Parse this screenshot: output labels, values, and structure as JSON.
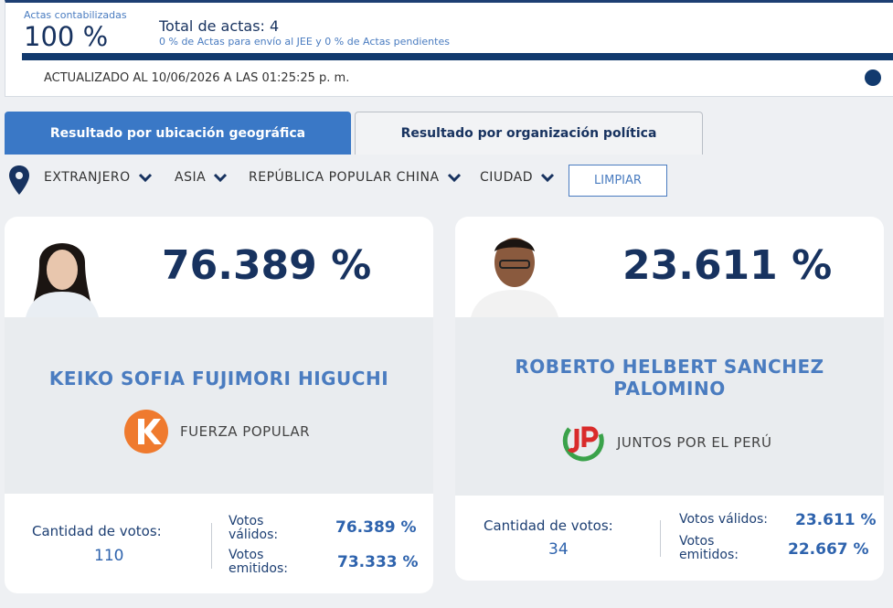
{
  "header": {
    "actas_label": "Actas contabilizadas",
    "actas_percent": "100 %",
    "total_actas": "Total de actas: 4",
    "actas_note": "0 % de Actas para envío al JEE y 0 % de Actas pendientes",
    "updated": "ACTUALIZADO AL 10/06/2026 A LAS 01:25:25 p. m."
  },
  "tabs": [
    "Resultado por ubicación geográfica",
    "Resultado por organización política"
  ],
  "filters": [
    "EXTRANJERO",
    "ASIA",
    "REPÚBLICA POPULAR CHINA",
    "CIUDAD"
  ],
  "clear_button": "LIMPIAR",
  "candidates": [
    {
      "percent": "76.389 %",
      "name": "KEIKO SOFIA FUJIMORI HIGUCHI",
      "party": "FUERZA POPULAR",
      "votes_label": "Cantidad de votos:",
      "votes": "110",
      "valid_label": "Votos válidos:",
      "valid": "76.389 %",
      "emitted_label": "Votos emitidos:",
      "emitted": "73.333 %"
    },
    {
      "percent": "23.611 %",
      "name": "ROBERTO HELBERT SANCHEZ PALOMINO",
      "party": "JUNTOS POR EL PERÚ",
      "votes_label": "Cantidad de votos:",
      "votes": "34",
      "valid_label": "Votos válidos:",
      "valid": "23.611 %",
      "emitted_label": "Votos emitidos:",
      "emitted": "22.667 %"
    }
  ]
}
